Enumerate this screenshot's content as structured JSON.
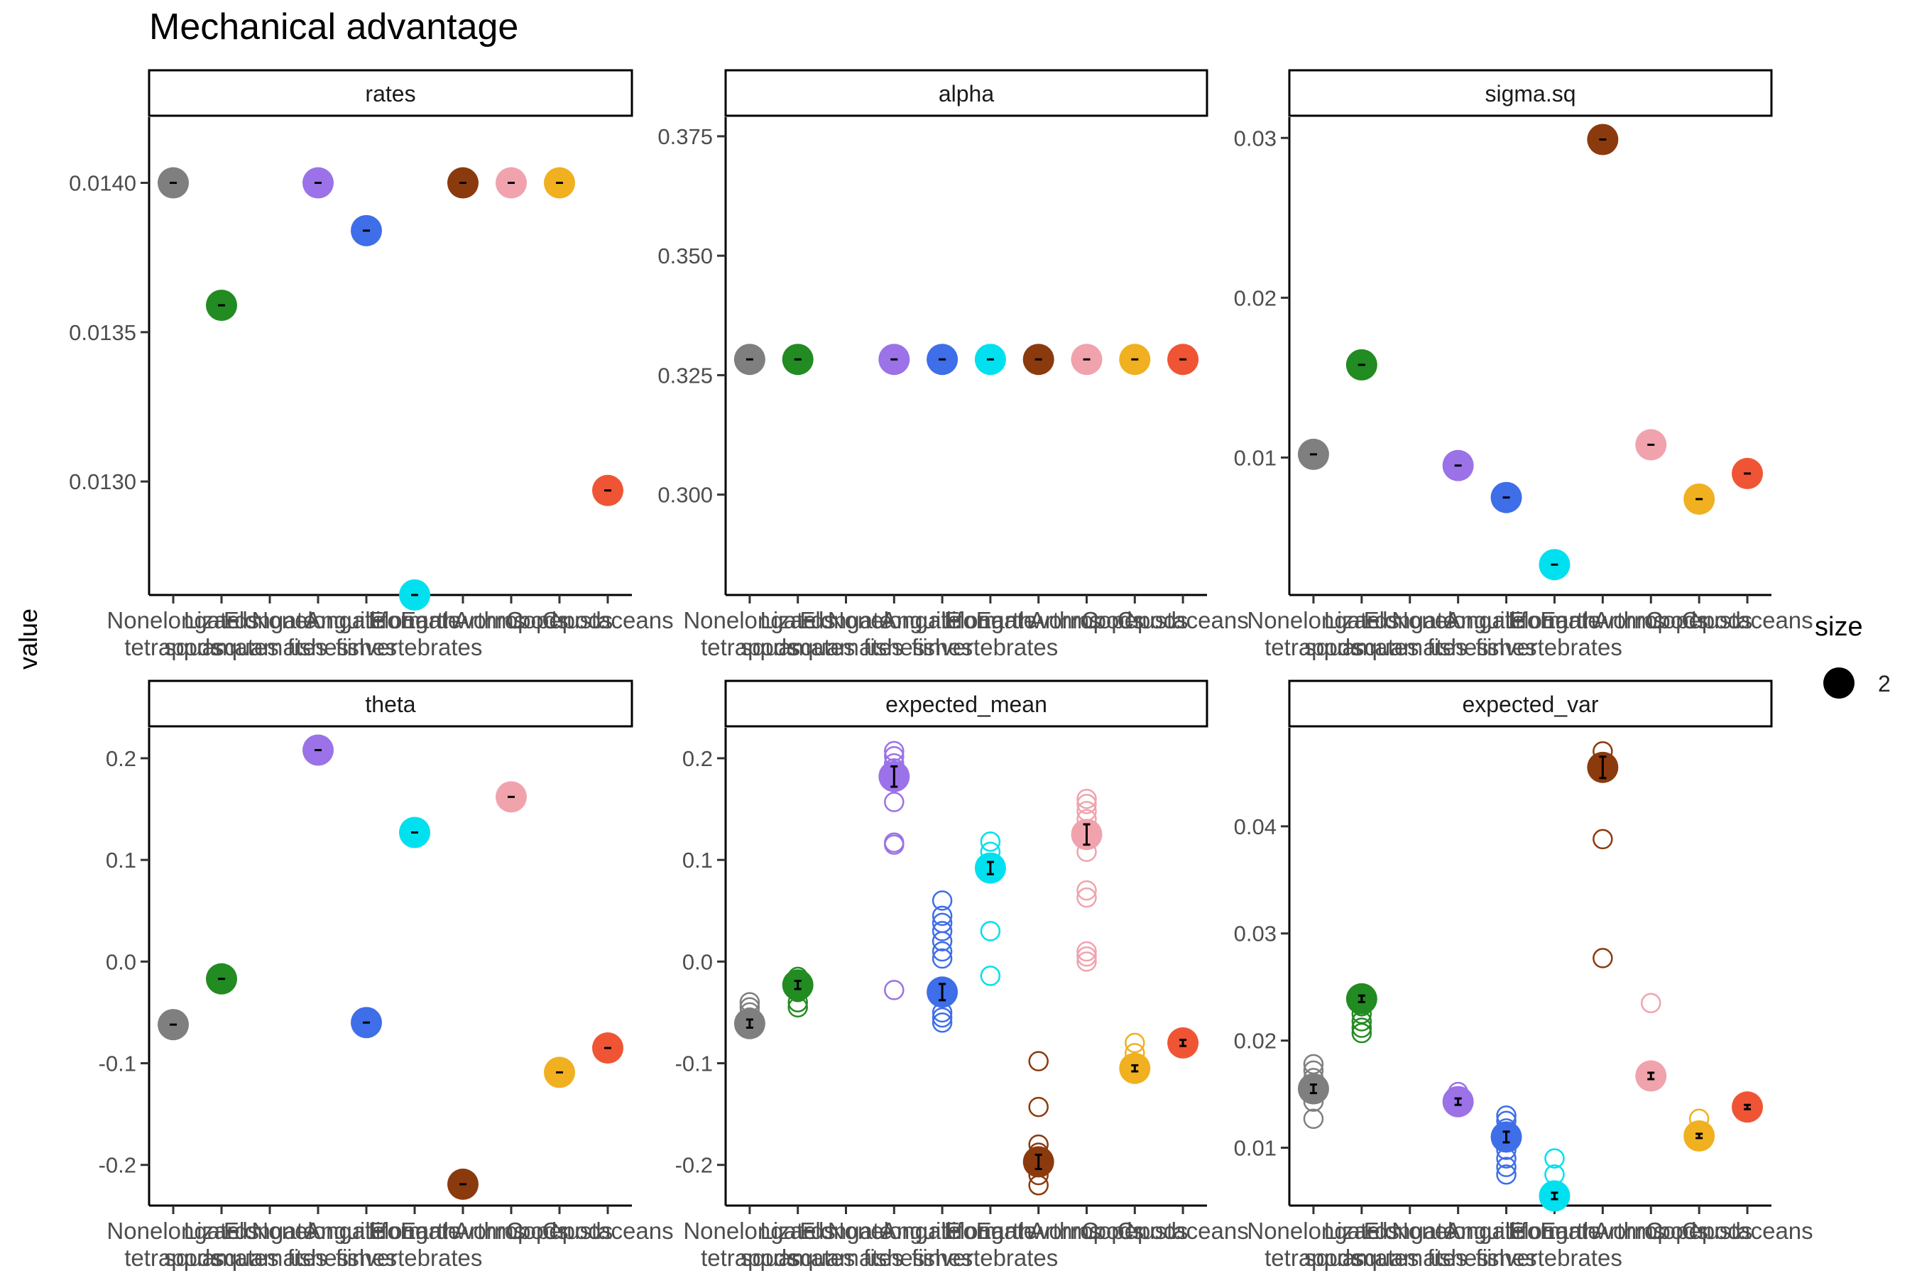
{
  "title": "Mechanical advantage",
  "ylabel": "value",
  "legend": {
    "title": "size",
    "label": "2"
  },
  "categories": [
    [
      "Nonelongate",
      "tetrapods"
    ],
    [
      "Lizards",
      "squamates"
    ],
    [
      "Elongate",
      "squamates"
    ],
    [
      "Nonelongate",
      "fishes"
    ],
    [
      "Anguilliform",
      "fishes"
    ],
    [
      "Elongate",
      "invertebrates"
    ],
    [
      "Earthworms"
    ],
    [
      "Arthropods"
    ],
    [
      "Copepods"
    ],
    [
      "Crustaceans"
    ]
  ],
  "colors": [
    "#7f7f7f",
    "#228b22",
    null,
    "#9b72e8",
    "#3e6ee8",
    "#00e0ef",
    "#8b3a0e",
    "#f0a3ad",
    "#f0b020",
    "#ef5535"
  ],
  "chart_data": [
    {
      "type": "scatter",
      "title": "rates",
      "ylim": [
        0.01262,
        0.01422
      ],
      "yticks": [
        0.013,
        0.0135,
        0.014
      ],
      "ytick_labels": [
        "0.0130",
        "0.0135",
        "0.0140"
      ],
      "values": [
        0.014,
        0.01359,
        null,
        0.014,
        0.01384,
        0.01262,
        0.014,
        0.014,
        0.014,
        0.01297
      ],
      "replicates": [
        [],
        [],
        [],
        [],
        [],
        [],
        [],
        [],
        [],
        []
      ]
    },
    {
      "type": "scatter",
      "title": "alpha",
      "ylim": [
        0.279,
        0.379
      ],
      "yticks": [
        0.3,
        0.325,
        0.35,
        0.375
      ],
      "ytick_labels": [
        "0.300",
        "0.325",
        "0.350",
        "0.375"
      ],
      "values": [
        0.3283,
        0.3283,
        null,
        0.3283,
        0.3283,
        0.3283,
        0.3283,
        0.3283,
        0.3283,
        0.3283
      ],
      "replicates": [
        [],
        [],
        [],
        [],
        [],
        [],
        [],
        [],
        [],
        []
      ]
    },
    {
      "type": "scatter",
      "title": "sigma.sq",
      "ylim": [
        0.0014,
        0.0313
      ],
      "yticks": [
        0.01,
        0.02,
        0.03
      ],
      "ytick_labels": [
        "0.01",
        "0.02",
        "0.03"
      ],
      "values": [
        0.0102,
        0.0158,
        null,
        0.0095,
        0.0075,
        0.0033,
        0.0299,
        0.0108,
        0.0074,
        0.009
      ],
      "replicates": [
        [],
        [],
        [],
        [],
        [],
        [],
        [],
        [],
        [],
        []
      ]
    },
    {
      "type": "scatter",
      "title": "theta",
      "ylim": [
        -0.24,
        0.23
      ],
      "yticks": [
        -0.2,
        -0.1,
        0.0,
        0.1,
        0.2
      ],
      "ytick_labels": [
        "-0.2",
        "-0.1",
        "0.0",
        "0.1",
        "0.2"
      ],
      "values": [
        -0.062,
        -0.017,
        null,
        0.208,
        -0.06,
        0.127,
        -0.219,
        0.162,
        -0.109,
        -0.085
      ],
      "replicates": [
        [],
        [],
        [],
        [],
        [],
        [],
        [],
        [],
        [],
        []
      ]
    },
    {
      "type": "scatter",
      "title": "expected_mean",
      "ylim": [
        -0.24,
        0.23
      ],
      "yticks": [
        -0.2,
        -0.1,
        0.0,
        0.1,
        0.2
      ],
      "ytick_labels": [
        "-0.2",
        "-0.1",
        "0.0",
        "0.1",
        "0.2"
      ],
      "values": [
        -0.061,
        -0.023,
        null,
        0.182,
        -0.03,
        0.092,
        -0.197,
        0.125,
        -0.105,
        -0.08
      ],
      "errors": [
        0.004,
        0.004,
        null,
        0.01,
        0.008,
        0.006,
        0.007,
        0.01,
        0.003,
        0.003
      ],
      "replicates": [
        [
          -0.04,
          -0.045,
          -0.05,
          -0.055,
          -0.065
        ],
        [
          -0.015,
          -0.02,
          -0.03,
          -0.04,
          -0.045
        ],
        [],
        [
          0.207,
          0.202,
          0.195,
          0.19,
          0.185,
          0.157,
          0.117,
          0.115,
          -0.028
        ],
        [
          0.06,
          0.045,
          0.038,
          0.03,
          0.02,
          0.01,
          0.003,
          -0.03,
          -0.05,
          -0.055,
          -0.06
        ],
        [
          0.118,
          0.108,
          0.03,
          -0.014
        ],
        [
          -0.098,
          -0.143,
          -0.18,
          -0.188,
          -0.2,
          -0.21,
          -0.22
        ],
        [
          0.16,
          0.155,
          0.148,
          0.14,
          0.13,
          0.12,
          0.108,
          0.07,
          0.063,
          0.01,
          0.005,
          0.0
        ],
        [
          -0.08,
          -0.09,
          -0.1
        ],
        []
      ]
    },
    {
      "type": "scatter",
      "title": "expected_var",
      "ylim": [
        0.0046,
        0.0492
      ],
      "yticks": [
        0.01,
        0.02,
        0.03,
        0.04
      ],
      "ytick_labels": [
        "0.01",
        "0.02",
        "0.03",
        "0.04"
      ],
      "values": [
        0.0155,
        0.0239,
        null,
        0.0143,
        0.011,
        0.0055,
        0.0455,
        0.0167,
        0.0111,
        0.0138
      ],
      "errors": [
        0.0004,
        0.0003,
        null,
        0.0003,
        0.0005,
        0.0003,
        0.001,
        0.0003,
        0.0002,
        0.0002
      ],
      "replicates": [
        [
          0.0178,
          0.0172,
          0.0165,
          0.0158,
          0.015,
          0.0143,
          0.0127
        ],
        [
          0.024,
          0.0232,
          0.0225,
          0.0218,
          0.0212,
          0.0207
        ],
        [],
        [
          0.0152,
          0.0148,
          0.0144,
          0.014
        ],
        [
          0.013,
          0.0125,
          0.0118,
          0.0112,
          0.0105,
          0.0098,
          0.009,
          0.0082,
          0.0075
        ],
        [
          0.009,
          0.0075,
          0.006
        ],
        [
          0.047,
          0.046,
          0.0388,
          0.0277
        ],
        [
          0.0235,
          0.0165
        ],
        [
          0.0127,
          0.0115
        ],
        []
      ]
    }
  ]
}
